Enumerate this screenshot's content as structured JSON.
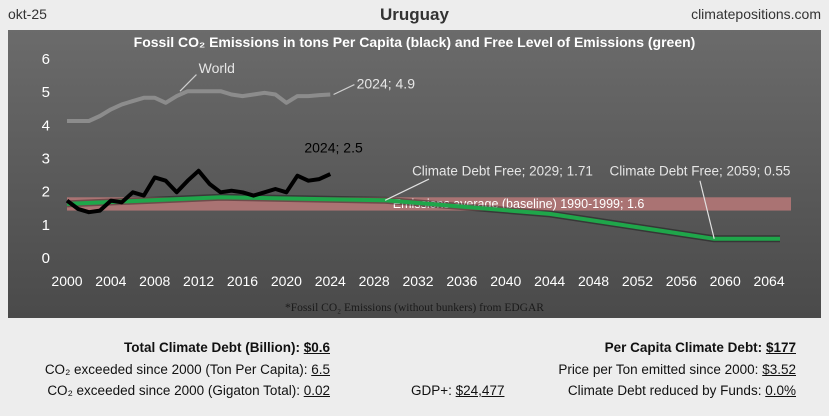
{
  "header": {
    "date_label": "okt-25",
    "country": "Uruguay",
    "site": "climatepositions.com"
  },
  "chart_data": {
    "type": "line",
    "title": "Fossil CO₂ Emissions in tons Per Capita (black) and Free Level of Emissions (green)",
    "footnote": "*Fossil CO₂ Emissions (without bunkers) from EDGAR",
    "xlim": [
      2000,
      2066
    ],
    "ylim": [
      0,
      6
    ],
    "x_ticks": [
      2000,
      2004,
      2008,
      2012,
      2016,
      2020,
      2024,
      2028,
      2032,
      2036,
      2040,
      2044,
      2048,
      2052,
      2056,
      2060,
      2064
    ],
    "y_ticks": [
      0,
      1,
      2,
      3,
      4,
      5,
      6
    ],
    "series": [
      {
        "name": "World",
        "color": "#8c8c8c",
        "x": [
          2000,
          2001,
          2002,
          2003,
          2004,
          2005,
          2006,
          2007,
          2008,
          2009,
          2010,
          2011,
          2012,
          2013,
          2014,
          2015,
          2016,
          2017,
          2018,
          2019,
          2020,
          2021,
          2022,
          2023,
          2024
        ],
        "y": [
          4.1,
          4.1,
          4.1,
          4.25,
          4.45,
          4.6,
          4.7,
          4.8,
          4.8,
          4.65,
          4.85,
          5.0,
          5.0,
          5.0,
          5.0,
          4.9,
          4.85,
          4.9,
          4.95,
          4.9,
          4.65,
          4.85,
          4.85,
          4.88,
          4.9
        ]
      },
      {
        "name": "Uruguay",
        "color": "#000000",
        "x": [
          2000,
          2001,
          2002,
          2003,
          2004,
          2005,
          2006,
          2007,
          2008,
          2009,
          2010,
          2011,
          2012,
          2013,
          2014,
          2015,
          2016,
          2017,
          2018,
          2019,
          2020,
          2021,
          2022,
          2023,
          2024
        ],
        "y": [
          1.7,
          1.45,
          1.35,
          1.4,
          1.7,
          1.65,
          1.95,
          1.85,
          2.4,
          2.3,
          1.95,
          2.3,
          2.6,
          2.2,
          1.95,
          2.0,
          1.95,
          1.85,
          1.95,
          2.05,
          1.95,
          2.45,
          2.3,
          2.35,
          2.5
        ]
      },
      {
        "name": "Free Level of Emissions",
        "color": "#1fa64a",
        "x": [
          2000,
          2014,
          2029,
          2044,
          2059,
          2065
        ],
        "y": [
          1.6,
          1.8,
          1.71,
          1.3,
          0.55,
          0.55
        ]
      }
    ],
    "baseline": {
      "label": "Emissions average (baseline) 1990-1999; 1.6",
      "value": 1.6,
      "band": [
        1.4,
        1.8
      ]
    },
    "annotations": {
      "world": "World",
      "world_2024": "2024; 4.9",
      "country_2024": "2024; 2.5",
      "debt_free_1": "Climate Debt Free; 2029; 1.71",
      "debt_free_2": "Climate Debt Free; 2059; 0.55"
    }
  },
  "stats": {
    "total_debt_label": "Total Climate Debt (Billion):",
    "total_debt_value": "$0.6",
    "co2_ton_label": "CO₂ exceeded since 2000 (Ton Per Capita):",
    "co2_ton_value": "6.5",
    "co2_gigaton_label": "CO₂ exceeded since 2000 (Gigaton Total):",
    "co2_gigaton_value": "0.02",
    "gdp_label": "GDP+:",
    "gdp_value": "$24,477",
    "per_capita_label": "Per Capita Climate Debt:",
    "per_capita_value": "$177",
    "price_label": "Price per Ton emitted since 2000:",
    "price_value": "$3.52",
    "funds_label": "Climate Debt reduced by Funds:",
    "funds_value": "0.0%"
  }
}
